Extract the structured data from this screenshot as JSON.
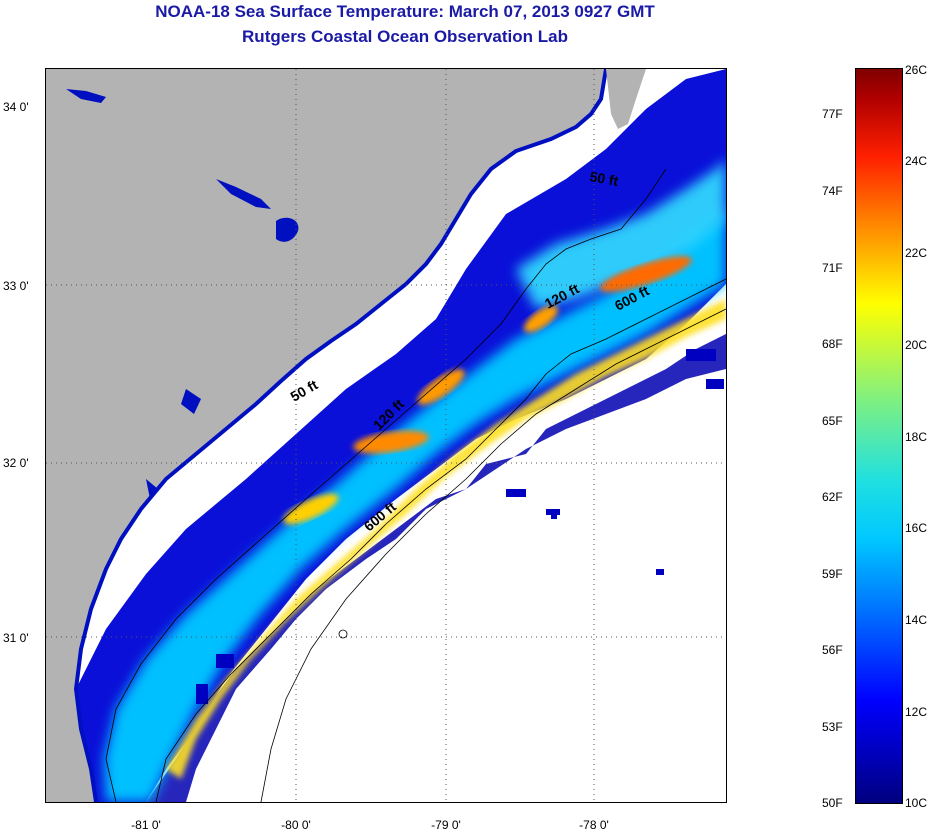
{
  "header": {
    "title": "NOAA-18 Sea Surface Temperature:  March 07, 2013 0927 GMT",
    "subtitle": "Rutgers Coastal Ocean Observation Lab"
  },
  "map": {
    "lat_labels": [
      "34 0'",
      "33 0'",
      "32 0'",
      "31 0'"
    ],
    "lon_labels": [
      "-81 0'",
      "-80 0'",
      "-79 0'",
      "-78 0'"
    ],
    "contours": [
      "50 ft",
      "50 ft",
      "120 ft",
      "120 ft",
      "600 ft",
      "600 ft"
    ],
    "colors": {
      "land": "#b3b3b3",
      "cloud": "#ffffff",
      "cold": "#0000c8",
      "cool": "#00c8ff",
      "mild": "#ffff00",
      "warm": "#ff8000"
    }
  },
  "colorbar": {
    "fahrenheit": [
      "77F",
      "74F",
      "71F",
      "68F",
      "65F",
      "62F",
      "59F",
      "56F",
      "53F",
      "50F"
    ],
    "celsius": [
      "26C",
      "24C",
      "22C",
      "20C",
      "18C",
      "16C",
      "14C",
      "12C",
      "10C"
    ]
  }
}
